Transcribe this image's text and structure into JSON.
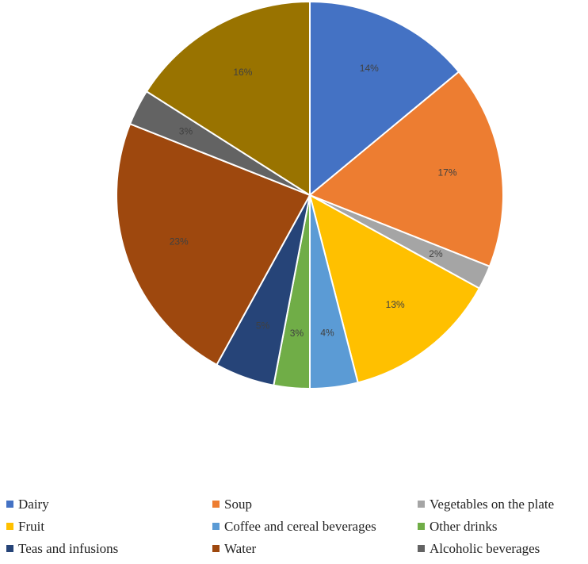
{
  "chart_data": {
    "type": "pie",
    "title": "",
    "categories": [
      "Dairy",
      "Soup",
      "Vegetables on the plate",
      "Fruit",
      "Coffee and cereal beverages",
      "Other drinks",
      "Teas and infusions",
      "Water",
      "Alcoholic beverages",
      ""
    ],
    "values": [
      14,
      17,
      2,
      13,
      4,
      3,
      5,
      23,
      3,
      16
    ],
    "data_labels": [
      "14%",
      "17%",
      "2%",
      "13%",
      "4%",
      "3%",
      "5%",
      "23%",
      "3%",
      "16%"
    ],
    "colors": [
      "#4472C4",
      "#ED7D31",
      "#A5A5A5",
      "#FFC000",
      "#5B9BD5",
      "#70AD47",
      "#264478",
      "#9E480E",
      "#636363",
      "#997300"
    ],
    "start_angle_deg": 0,
    "direction": "clockwise",
    "legend_position": "bottom"
  },
  "legend": {
    "items": [
      {
        "label": "Dairy",
        "color": "#4472C4"
      },
      {
        "label": "Soup",
        "color": "#ED7D31"
      },
      {
        "label": "Vegetables on the plate",
        "color": "#A5A5A5"
      },
      {
        "label": "Fruit",
        "color": "#FFC000"
      },
      {
        "label": "Coffee and cereal beverages",
        "color": "#5B9BD5"
      },
      {
        "label": "Other drinks",
        "color": "#70AD47"
      },
      {
        "label": "Teas and infusions",
        "color": "#264478"
      },
      {
        "label": "Water",
        "color": "#9E480E"
      },
      {
        "label": "Alcoholic beverages",
        "color": "#636363"
      }
    ]
  }
}
